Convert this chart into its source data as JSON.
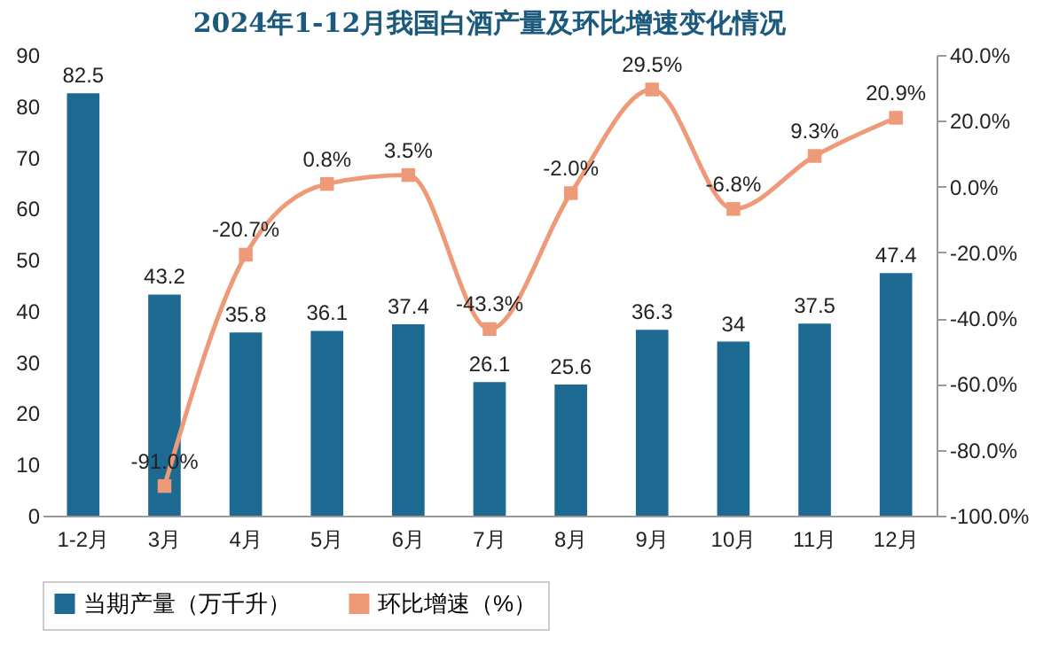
{
  "chart_data": {
    "type": "bar",
    "title": "2024年1-12月我国白酒产量及环比增速变化情况",
    "categories": [
      "1-2月",
      "3月",
      "4月",
      "5月",
      "6月",
      "7月",
      "8月",
      "9月",
      "10月",
      "11月",
      "12月"
    ],
    "series": [
      {
        "name": "当期产量（万千升）",
        "color": "#1c6a92",
        "values": [
          82.5,
          43.2,
          35.8,
          36.1,
          37.4,
          26.1,
          25.6,
          36.3,
          34,
          37.5,
          47.4
        ],
        "value_labels": [
          "82.5",
          "43.2",
          "35.8",
          "36.1",
          "37.4",
          "26.1",
          "25.6",
          "36.3",
          "34",
          "37.5",
          "47.4"
        ]
      },
      {
        "name": "环比增速（%）",
        "type": "line",
        "axis": "y2",
        "color": "#ee9a78",
        "values": [
          null,
          -91.0,
          -20.7,
          0.8,
          3.5,
          -43.3,
          -2.0,
          29.5,
          -6.8,
          9.3,
          20.9
        ],
        "value_labels": [
          null,
          "-91.0%",
          "-20.7%",
          "0.8%",
          "3.5%",
          "-43.3%",
          "-2.0%",
          "29.5%",
          "-6.8%",
          "9.3%",
          "20.9%"
        ]
      }
    ],
    "ylim": [
      0,
      90
    ],
    "yticks": [
      0,
      10,
      20,
      30,
      40,
      50,
      60,
      70,
      80,
      90
    ],
    "y2lim": [
      -100,
      40
    ],
    "y2ticks": [
      {
        "value": -100,
        "label": "-100.0%"
      },
      {
        "value": -80,
        "label": "-80.0%"
      },
      {
        "value": -60,
        "label": "-60.0%"
      },
      {
        "value": -40,
        "label": "-40.0%"
      },
      {
        "value": -20,
        "label": "-20.0%"
      },
      {
        "value": 0,
        "label": "0.0%"
      },
      {
        "value": 20,
        "label": "20.0%"
      },
      {
        "value": 40,
        "label": "40.0%"
      }
    ],
    "marker": "square",
    "legend": "bottom",
    "grid": false
  }
}
